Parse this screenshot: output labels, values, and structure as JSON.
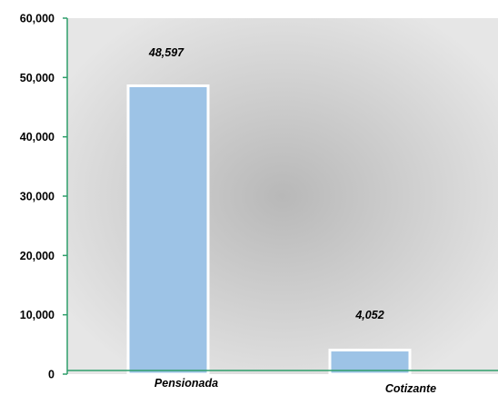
{
  "chart_data": {
    "type": "bar",
    "categories": [
      "Pensionada",
      "Cotizante"
    ],
    "values": [
      48597,
      4052
    ],
    "data_labels": [
      "48,597",
      "4,052"
    ],
    "title": "",
    "xlabel": "",
    "ylabel": "",
    "ylim": [
      0,
      60000
    ],
    "yticks": [
      0,
      10000,
      20000,
      30000,
      40000,
      50000,
      60000
    ],
    "ytick_labels": [
      "0",
      "10,000",
      "20,000",
      "30,000",
      "40,000",
      "50,000",
      "60,000"
    ],
    "grid": false,
    "legend": "none",
    "colors": {
      "bar_fill": "#9dc3e6",
      "bar_stroke": "#ffffff",
      "axis": "#2e9e6a",
      "plot_bg_center": "#b8b8b8",
      "plot_bg_edge": "#e6e6e6"
    }
  }
}
